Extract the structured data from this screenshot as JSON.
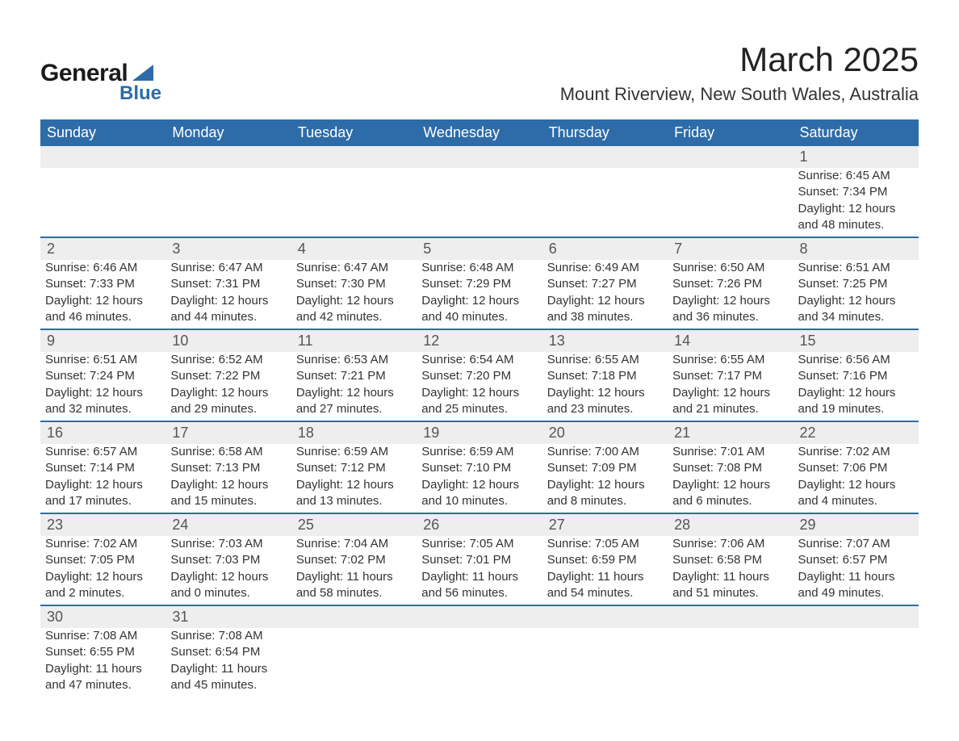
{
  "logo": {
    "main": "General",
    "sub": "Blue",
    "main_color": "#1a1a1a",
    "sub_color": "#2d6ca8",
    "shape_color": "#2d6ca8"
  },
  "header": {
    "title": "March 2025",
    "subtitle": "Mount Riverview, New South Wales, Australia"
  },
  "calendar": {
    "header_bg": "#2d6ca8",
    "header_fg": "#ffffff",
    "daynum_bg": "#eeeeee",
    "daynum_fg": "#555555",
    "separator_color": "#2d6ca8",
    "days_of_week": [
      "Sunday",
      "Monday",
      "Tuesday",
      "Wednesday",
      "Thursday",
      "Friday",
      "Saturday"
    ],
    "weeks": [
      [
        null,
        null,
        null,
        null,
        null,
        null,
        {
          "n": "1",
          "sunrise": "Sunrise: 6:45 AM",
          "sunset": "Sunset: 7:34 PM",
          "daylight1": "Daylight: 12 hours",
          "daylight2": "and 48 minutes."
        }
      ],
      [
        {
          "n": "2",
          "sunrise": "Sunrise: 6:46 AM",
          "sunset": "Sunset: 7:33 PM",
          "daylight1": "Daylight: 12 hours",
          "daylight2": "and 46 minutes."
        },
        {
          "n": "3",
          "sunrise": "Sunrise: 6:47 AM",
          "sunset": "Sunset: 7:31 PM",
          "daylight1": "Daylight: 12 hours",
          "daylight2": "and 44 minutes."
        },
        {
          "n": "4",
          "sunrise": "Sunrise: 6:47 AM",
          "sunset": "Sunset: 7:30 PM",
          "daylight1": "Daylight: 12 hours",
          "daylight2": "and 42 minutes."
        },
        {
          "n": "5",
          "sunrise": "Sunrise: 6:48 AM",
          "sunset": "Sunset: 7:29 PM",
          "daylight1": "Daylight: 12 hours",
          "daylight2": "and 40 minutes."
        },
        {
          "n": "6",
          "sunrise": "Sunrise: 6:49 AM",
          "sunset": "Sunset: 7:27 PM",
          "daylight1": "Daylight: 12 hours",
          "daylight2": "and 38 minutes."
        },
        {
          "n": "7",
          "sunrise": "Sunrise: 6:50 AM",
          "sunset": "Sunset: 7:26 PM",
          "daylight1": "Daylight: 12 hours",
          "daylight2": "and 36 minutes."
        },
        {
          "n": "8",
          "sunrise": "Sunrise: 6:51 AM",
          "sunset": "Sunset: 7:25 PM",
          "daylight1": "Daylight: 12 hours",
          "daylight2": "and 34 minutes."
        }
      ],
      [
        {
          "n": "9",
          "sunrise": "Sunrise: 6:51 AM",
          "sunset": "Sunset: 7:24 PM",
          "daylight1": "Daylight: 12 hours",
          "daylight2": "and 32 minutes."
        },
        {
          "n": "10",
          "sunrise": "Sunrise: 6:52 AM",
          "sunset": "Sunset: 7:22 PM",
          "daylight1": "Daylight: 12 hours",
          "daylight2": "and 29 minutes."
        },
        {
          "n": "11",
          "sunrise": "Sunrise: 6:53 AM",
          "sunset": "Sunset: 7:21 PM",
          "daylight1": "Daylight: 12 hours",
          "daylight2": "and 27 minutes."
        },
        {
          "n": "12",
          "sunrise": "Sunrise: 6:54 AM",
          "sunset": "Sunset: 7:20 PM",
          "daylight1": "Daylight: 12 hours",
          "daylight2": "and 25 minutes."
        },
        {
          "n": "13",
          "sunrise": "Sunrise: 6:55 AM",
          "sunset": "Sunset: 7:18 PM",
          "daylight1": "Daylight: 12 hours",
          "daylight2": "and 23 minutes."
        },
        {
          "n": "14",
          "sunrise": "Sunrise: 6:55 AM",
          "sunset": "Sunset: 7:17 PM",
          "daylight1": "Daylight: 12 hours",
          "daylight2": "and 21 minutes."
        },
        {
          "n": "15",
          "sunrise": "Sunrise: 6:56 AM",
          "sunset": "Sunset: 7:16 PM",
          "daylight1": "Daylight: 12 hours",
          "daylight2": "and 19 minutes."
        }
      ],
      [
        {
          "n": "16",
          "sunrise": "Sunrise: 6:57 AM",
          "sunset": "Sunset: 7:14 PM",
          "daylight1": "Daylight: 12 hours",
          "daylight2": "and 17 minutes."
        },
        {
          "n": "17",
          "sunrise": "Sunrise: 6:58 AM",
          "sunset": "Sunset: 7:13 PM",
          "daylight1": "Daylight: 12 hours",
          "daylight2": "and 15 minutes."
        },
        {
          "n": "18",
          "sunrise": "Sunrise: 6:59 AM",
          "sunset": "Sunset: 7:12 PM",
          "daylight1": "Daylight: 12 hours",
          "daylight2": "and 13 minutes."
        },
        {
          "n": "19",
          "sunrise": "Sunrise: 6:59 AM",
          "sunset": "Sunset: 7:10 PM",
          "daylight1": "Daylight: 12 hours",
          "daylight2": "and 10 minutes."
        },
        {
          "n": "20",
          "sunrise": "Sunrise: 7:00 AM",
          "sunset": "Sunset: 7:09 PM",
          "daylight1": "Daylight: 12 hours",
          "daylight2": "and 8 minutes."
        },
        {
          "n": "21",
          "sunrise": "Sunrise: 7:01 AM",
          "sunset": "Sunset: 7:08 PM",
          "daylight1": "Daylight: 12 hours",
          "daylight2": "and 6 minutes."
        },
        {
          "n": "22",
          "sunrise": "Sunrise: 7:02 AM",
          "sunset": "Sunset: 7:06 PM",
          "daylight1": "Daylight: 12 hours",
          "daylight2": "and 4 minutes."
        }
      ],
      [
        {
          "n": "23",
          "sunrise": "Sunrise: 7:02 AM",
          "sunset": "Sunset: 7:05 PM",
          "daylight1": "Daylight: 12 hours",
          "daylight2": "and 2 minutes."
        },
        {
          "n": "24",
          "sunrise": "Sunrise: 7:03 AM",
          "sunset": "Sunset: 7:03 PM",
          "daylight1": "Daylight: 12 hours",
          "daylight2": "and 0 minutes."
        },
        {
          "n": "25",
          "sunrise": "Sunrise: 7:04 AM",
          "sunset": "Sunset: 7:02 PM",
          "daylight1": "Daylight: 11 hours",
          "daylight2": "and 58 minutes."
        },
        {
          "n": "26",
          "sunrise": "Sunrise: 7:05 AM",
          "sunset": "Sunset: 7:01 PM",
          "daylight1": "Daylight: 11 hours",
          "daylight2": "and 56 minutes."
        },
        {
          "n": "27",
          "sunrise": "Sunrise: 7:05 AM",
          "sunset": "Sunset: 6:59 PM",
          "daylight1": "Daylight: 11 hours",
          "daylight2": "and 54 minutes."
        },
        {
          "n": "28",
          "sunrise": "Sunrise: 7:06 AM",
          "sunset": "Sunset: 6:58 PM",
          "daylight1": "Daylight: 11 hours",
          "daylight2": "and 51 minutes."
        },
        {
          "n": "29",
          "sunrise": "Sunrise: 7:07 AM",
          "sunset": "Sunset: 6:57 PM",
          "daylight1": "Daylight: 11 hours",
          "daylight2": "and 49 minutes."
        }
      ],
      [
        {
          "n": "30",
          "sunrise": "Sunrise: 7:08 AM",
          "sunset": "Sunset: 6:55 PM",
          "daylight1": "Daylight: 11 hours",
          "daylight2": "and 47 minutes."
        },
        {
          "n": "31",
          "sunrise": "Sunrise: 7:08 AM",
          "sunset": "Sunset: 6:54 PM",
          "daylight1": "Daylight: 11 hours",
          "daylight2": "and 45 minutes."
        },
        null,
        null,
        null,
        null,
        null
      ]
    ]
  }
}
